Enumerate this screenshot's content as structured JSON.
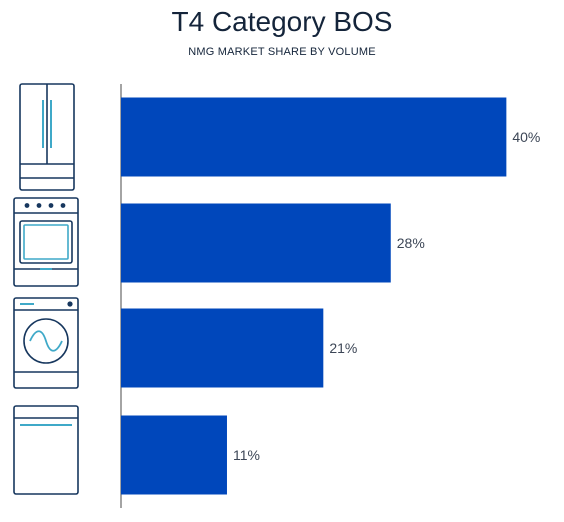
{
  "chart_data": {
    "type": "bar",
    "orientation": "horizontal",
    "title": "T4 Category BOS",
    "subtitle": "NMG MARKET SHARE BY VOLUME",
    "categories": [
      {
        "icon": "refrigerator-icon",
        "value": 40,
        "label": "40%"
      },
      {
        "icon": "range-oven-icon",
        "value": 28,
        "label": "28%"
      },
      {
        "icon": "washer-icon",
        "value": 21,
        "label": "21%"
      },
      {
        "icon": "dishwasher-icon",
        "value": 11,
        "label": "11%"
      }
    ],
    "xlim": [
      0,
      41
    ],
    "grid": false,
    "legend": "none"
  },
  "colors": {
    "bar": "#0047bb",
    "icon_stroke": "#17375e",
    "icon_accent": "#3fa9c8",
    "axis": "#4a4a4a",
    "text": "#14243a",
    "label": "#3c4656"
  }
}
